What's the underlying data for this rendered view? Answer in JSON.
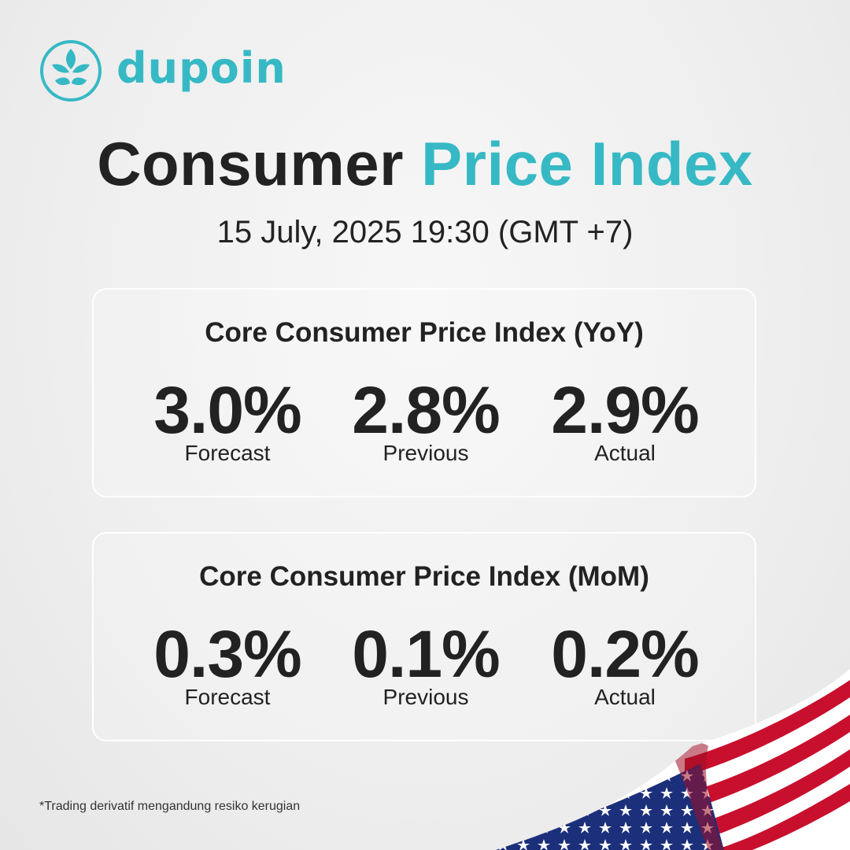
{
  "brand": {
    "name": "dupoin",
    "color": "#36b9c4",
    "icon": "lotus-icon"
  },
  "header": {
    "title_part1": "Consumer",
    "title_part2": "Price Index",
    "date": "15 July, 2025 19:30 (GMT +7)"
  },
  "cards": [
    {
      "title": "Core Consumer Price Index (YoY)",
      "metrics": [
        {
          "value": "3.0%",
          "label": "Forecast"
        },
        {
          "value": "2.8%",
          "label": "Previous"
        },
        {
          "value": "2.9%",
          "label": "Actual"
        }
      ]
    },
    {
      "title": "Core Consumer Price Index (MoM)",
      "metrics": [
        {
          "value": "0.3%",
          "label": "Forecast"
        },
        {
          "value": "0.1%",
          "label": "Previous"
        },
        {
          "value": "0.2%",
          "label": "Actual"
        }
      ]
    }
  ],
  "footer": {
    "disclaimer": "*Trading derivatif mengandung resiko kerugian"
  },
  "decoration": {
    "flag": "us-flag-icon",
    "flag_colors": {
      "red": "#c8102e",
      "white": "#ffffff",
      "blue": "#1c2f7a"
    }
  }
}
